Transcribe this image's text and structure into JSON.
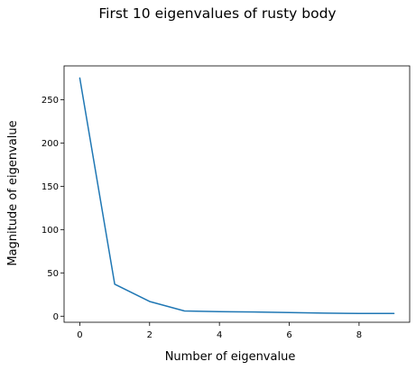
{
  "chart_data": {
    "type": "line",
    "title": "First 10 eigenvalues of rusty body",
    "xlabel": "Number of eigenvalue",
    "ylabel": "Magnitude of eigenvalue",
    "x": [
      0,
      1,
      2,
      3,
      4,
      5,
      6,
      7,
      8,
      9
    ],
    "series": [
      {
        "values": [
          275,
          37,
          17,
          6,
          5.3,
          4.8,
          4.2,
          3.5,
          3.2,
          3.1
        ],
        "color": "#1f77b4"
      }
    ],
    "xlim": [
      -0.45,
      9.45
    ],
    "ylim": [
      -7,
      289
    ],
    "xticks": [
      0,
      2,
      4,
      6,
      8
    ],
    "yticks": [
      0,
      50,
      100,
      150,
      200,
      250
    ],
    "grid": false,
    "legend": "none"
  }
}
